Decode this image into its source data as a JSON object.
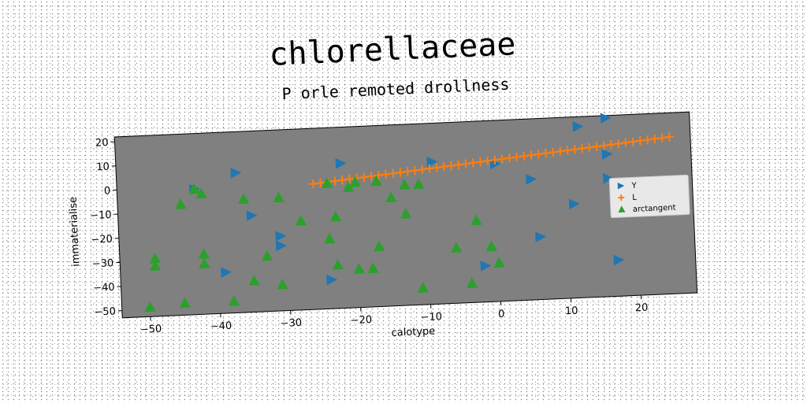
{
  "chart_data": {
    "type": "scatter",
    "title": "chlorellaceae",
    "subtitle": "P orle remoted drollness",
    "xlabel": "calotype",
    "ylabel": "immaterialise",
    "xlim": [
      -54,
      28
    ],
    "ylim": [
      -53,
      22
    ],
    "xticks": [
      -50,
      -40,
      -30,
      -20,
      -10,
      0,
      10,
      20
    ],
    "yticks": [
      20,
      10,
      0,
      -10,
      -20,
      -30,
      -40,
      -50
    ],
    "xtick_labels": [
      "−50",
      "−40",
      "−30",
      "−20",
      "−10",
      "0",
      "10",
      "20"
    ],
    "ytick_labels": [
      "20",
      "10",
      "0",
      "−10",
      "−20",
      "−30",
      "−40",
      "−50"
    ],
    "background": "#808080",
    "grid": false,
    "legend_position": "center-right",
    "series": [
      {
        "name": "Y",
        "marker": "triangle-right",
        "color": "#1f77b4",
        "points": [
          [
            16,
            21
          ],
          [
            12,
            18
          ],
          [
            16,
            6
          ],
          [
            -22,
            7
          ],
          [
            -9,
            6
          ],
          [
            -37,
            5
          ],
          [
            -43,
            -1
          ],
          [
            -35,
            -13
          ],
          [
            5,
            -3
          ],
          [
            16,
            -4
          ],
          [
            11,
            -14
          ],
          [
            -31,
            -22
          ],
          [
            -31,
            -26
          ],
          [
            6,
            -27
          ],
          [
            -39,
            -36
          ],
          [
            -24,
            -41
          ],
          [
            -2,
            -38
          ],
          [
            17,
            -38
          ],
          [
            0,
            4
          ]
        ]
      },
      {
        "name": "L",
        "marker": "plus",
        "color": "#ff7f0e",
        "line": {
          "x_start": -26,
          "x_end": 25,
          "y_start": -1,
          "y_end": 12,
          "n": 50
        }
      },
      {
        "name": "arctangent",
        "marker": "triangle-up",
        "color": "#2ca02c",
        "points": [
          [
            -24,
            -1
          ],
          [
            -43,
            -1
          ],
          [
            -42,
            -3
          ],
          [
            -45,
            -7
          ],
          [
            -36,
            -6
          ],
          [
            -31,
            -6
          ],
          [
            -21,
            -3
          ],
          [
            -20,
            -1
          ],
          [
            -17,
            -1
          ],
          [
            -13,
            -3
          ],
          [
            -11,
            -3
          ],
          [
            -15,
            -8
          ],
          [
            -28,
            -16
          ],
          [
            -23,
            -15
          ],
          [
            -13,
            -15
          ],
          [
            -3,
            -19
          ],
          [
            -24,
            -24
          ],
          [
            -17,
            -28
          ],
          [
            -42,
            -28
          ],
          [
            -49,
            -29
          ],
          [
            -49,
            -32
          ],
          [
            -42,
            -32
          ],
          [
            -33,
            -30
          ],
          [
            -6,
            -30
          ],
          [
            -1,
            -30
          ],
          [
            -23,
            -35
          ],
          [
            -20,
            -37
          ],
          [
            -18,
            -37
          ],
          [
            0,
            -37
          ],
          [
            -35,
            -40
          ],
          [
            -31,
            -42
          ],
          [
            -4,
            -45
          ],
          [
            -11,
            -46
          ],
          [
            -38,
            -48
          ],
          [
            -45,
            -48
          ],
          [
            -50,
            -49
          ]
        ]
      }
    ]
  }
}
